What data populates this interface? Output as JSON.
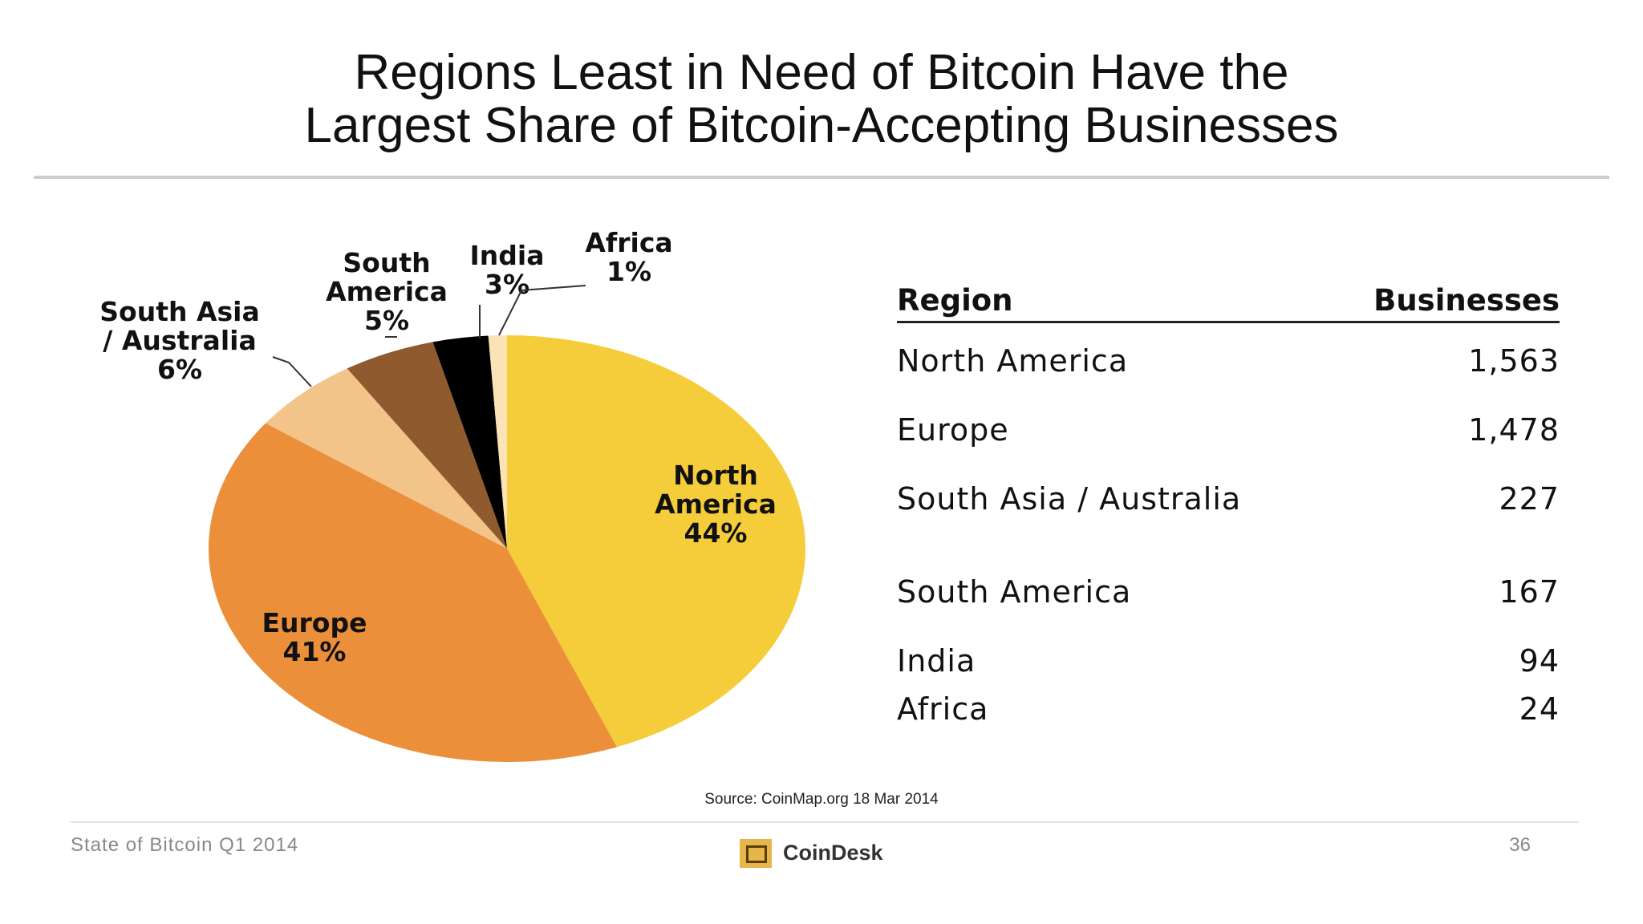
{
  "title_lines": [
    "Regions Least in Need of Bitcoin Have the",
    "Largest Share of Bitcoin-Accepting Businesses"
  ],
  "chart_data": {
    "type": "pie",
    "title": "Regions Least in Need of Bitcoin Have the Largest Share of Bitcoin-Accepting Businesses",
    "slices": [
      {
        "name": "North America",
        "label_lines": [
          "North",
          "America",
          "44%"
        ],
        "percent": 44,
        "color": "#f5cd3a"
      },
      {
        "name": "Europe",
        "label_lines": [
          "Europe",
          "41%"
        ],
        "percent": 41,
        "color": "#eb8f3a"
      },
      {
        "name": "South Asia / Australia",
        "label_lines": [
          "South Asia",
          "/ Australia",
          "6%"
        ],
        "percent": 6,
        "color": "#f3c48a"
      },
      {
        "name": "South America",
        "label_lines": [
          "South",
          "America",
          "5%"
        ],
        "percent": 5,
        "color": "#8f5a2e"
      },
      {
        "name": "India",
        "label_lines": [
          "India",
          "3%"
        ],
        "percent": 3,
        "color": "#000000"
      },
      {
        "name": "Africa",
        "label_lines": [
          "Africa",
          "1%"
        ],
        "percent": 1,
        "color": "#fbe3b7"
      }
    ]
  },
  "table": {
    "header": {
      "region": "Region",
      "businesses": "Businesses"
    },
    "rows": [
      {
        "region": "North America",
        "businesses": "1,563"
      },
      {
        "region": "Europe",
        "businesses": "1,478"
      },
      {
        "region": "South Asia / Australia",
        "businesses": "227"
      },
      {
        "region": "South America",
        "businesses": "167"
      },
      {
        "region": "India",
        "businesses": "94"
      },
      {
        "region": "Africa",
        "businesses": "24"
      }
    ]
  },
  "source": "Source: CoinMap.org 18 Mar 2014",
  "footer": {
    "left": "State of Bitcoin Q1 2014",
    "logo_text": "CoinDesk",
    "page_number": "36"
  }
}
